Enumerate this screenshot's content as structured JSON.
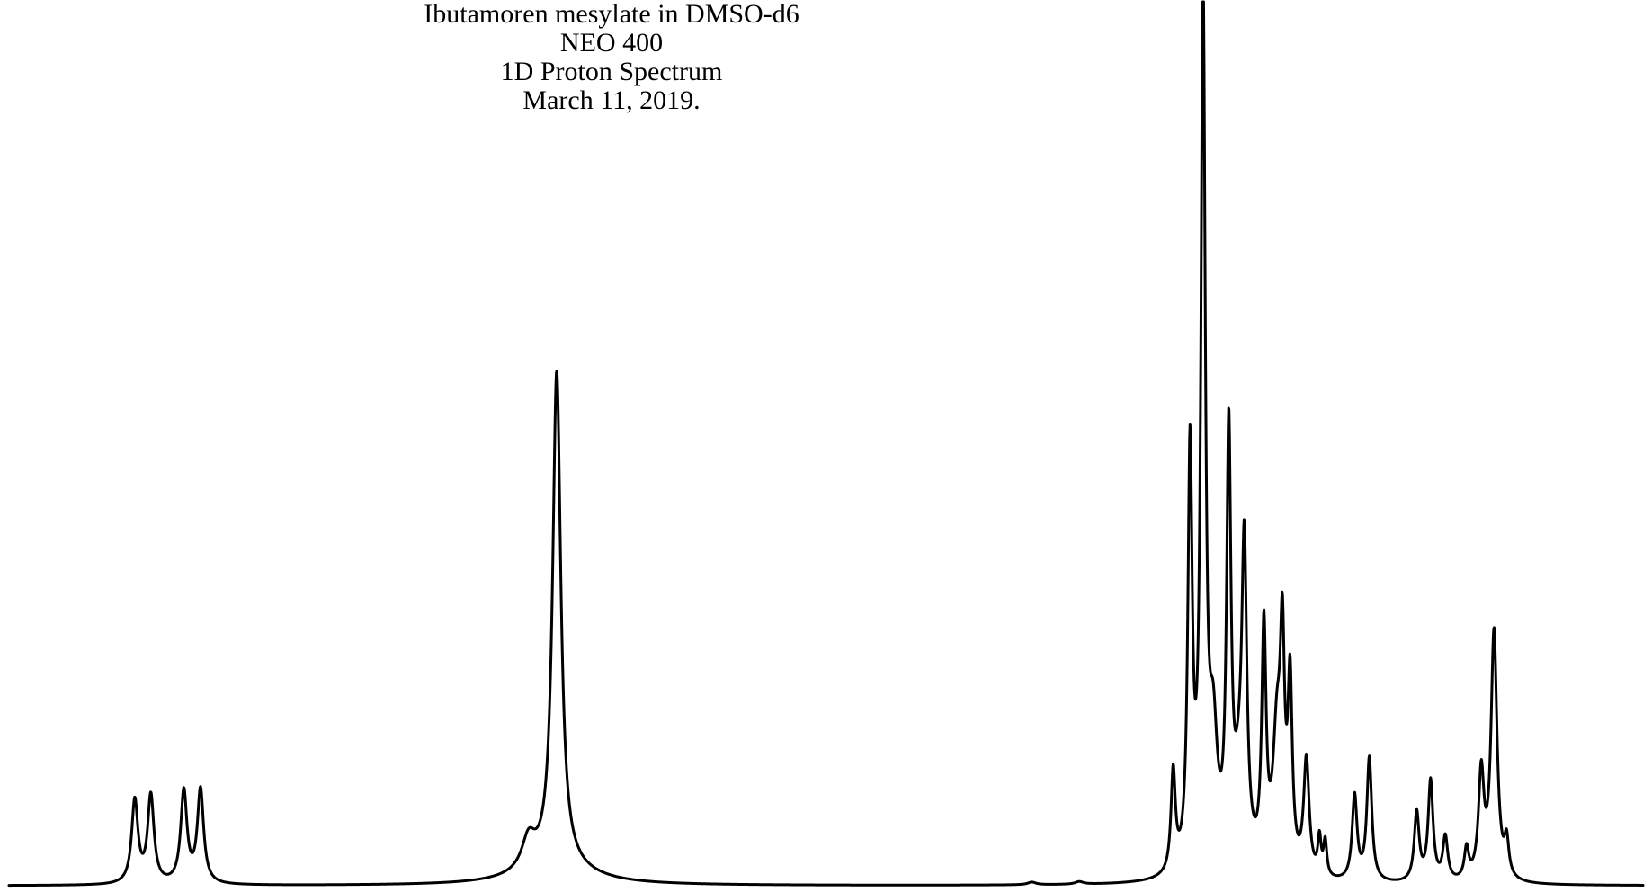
{
  "chart_data": {
    "type": "line",
    "title_lines": [
      "Ibutamoren mesylate in DMSO-d6",
      "NEO 400",
      "1D Proton Spectrum",
      "March 11, 2019."
    ],
    "xlabel": "",
    "ylabel": "",
    "grid": false,
    "legend": "none",
    "line_color": "#000000",
    "peaks": [
      {
        "pos": 0.077,
        "height": 0.095,
        "width": 0.0023
      },
      {
        "pos": 0.0868,
        "height": 0.1,
        "width": 0.0023
      },
      {
        "pos": 0.107,
        "height": 0.105,
        "width": 0.0023
      },
      {
        "pos": 0.1172,
        "height": 0.107,
        "width": 0.0023
      },
      {
        "pos": 0.318,
        "height": 0.035,
        "width": 0.005
      },
      {
        "pos": 0.3352,
        "height": 0.566,
        "width": 0.003
      },
      {
        "pos": 0.3352,
        "height": 0.02,
        "width": 0.025
      },
      {
        "pos": 0.626,
        "height": 0.003,
        "width": 0.003
      },
      {
        "pos": 0.655,
        "height": 0.003,
        "width": 0.003
      },
      {
        "pos": 0.7125,
        "height": 0.115,
        "width": 0.0016
      },
      {
        "pos": 0.7228,
        "height": 0.475,
        "width": 0.0016
      },
      {
        "pos": 0.7308,
        "height": 0.996,
        "width": 0.0016
      },
      {
        "pos": 0.737,
        "height": 0.14,
        "width": 0.003
      },
      {
        "pos": 0.7465,
        "height": 0.485,
        "width": 0.0016
      },
      {
        "pos": 0.756,
        "height": 0.335,
        "width": 0.0018
      },
      {
        "pos": 0.753,
        "height": 0.08,
        "width": 0.004
      },
      {
        "pos": 0.768,
        "height": 0.27,
        "width": 0.0016
      },
      {
        "pos": 0.776,
        "height": 0.15,
        "width": 0.003
      },
      {
        "pos": 0.7793,
        "height": 0.23,
        "width": 0.0016
      },
      {
        "pos": 0.784,
        "height": 0.208,
        "width": 0.0016
      },
      {
        "pos": 0.794,
        "height": 0.132,
        "width": 0.002
      },
      {
        "pos": 0.802,
        "height": 0.042,
        "width": 0.0012
      },
      {
        "pos": 0.8055,
        "height": 0.04,
        "width": 0.0012
      },
      {
        "pos": 0.8235,
        "height": 0.097,
        "width": 0.0018
      },
      {
        "pos": 0.8325,
        "height": 0.141,
        "width": 0.0018
      },
      {
        "pos": 0.8615,
        "height": 0.079,
        "width": 0.0018
      },
      {
        "pos": 0.87,
        "height": 0.115,
        "width": 0.0018
      },
      {
        "pos": 0.879,
        "height": 0.05,
        "width": 0.0018
      },
      {
        "pos": 0.892,
        "height": 0.035,
        "width": 0.0016
      },
      {
        "pos": 0.901,
        "height": 0.12,
        "width": 0.002
      },
      {
        "pos": 0.9088,
        "height": 0.285,
        "width": 0.0022
      },
      {
        "pos": 0.9165,
        "height": 0.04,
        "width": 0.0016
      }
    ]
  }
}
